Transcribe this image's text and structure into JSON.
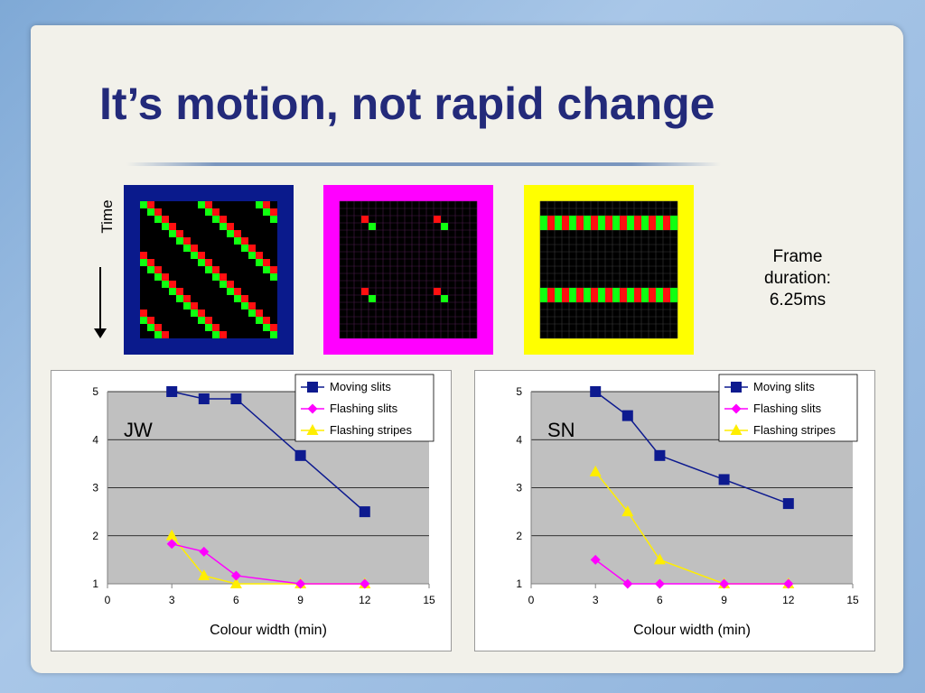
{
  "slide": {
    "title": "It’s motion, not rapid change",
    "time_label": "Time",
    "frame_note": [
      "Frame",
      "duration:",
      "6.25ms"
    ]
  },
  "stimuli": [
    {
      "name": "moving-slits",
      "border_color": "#0a1a8c"
    },
    {
      "name": "flashing-slits",
      "border_color": "#ff00ff"
    },
    {
      "name": "flashing-stripes",
      "border_color": "#ffff00"
    }
  ],
  "colors": {
    "moving": "#0d1a8f",
    "slits": "#ff00ff",
    "stripes": "#ffee00",
    "plot_bg": "#c0c0c0"
  },
  "chart_data": [
    {
      "type": "line",
      "subject": "JW",
      "xlabel": "Colour width (min)",
      "ylabel": "",
      "xlim": [
        0,
        15
      ],
      "ylim": [
        1,
        5
      ],
      "xticks": [
        0,
        3,
        6,
        9,
        12,
        15
      ],
      "yticks": [
        1,
        2,
        3,
        4,
        5
      ],
      "grid": true,
      "legend_position": "top-right",
      "series": [
        {
          "name": "Moving slits",
          "x": [
            3,
            4.5,
            6,
            9,
            12
          ],
          "y": [
            5,
            4.85,
            4.85,
            3.67,
            2.5
          ]
        },
        {
          "name": "Flashing slits",
          "x": [
            3,
            4.5,
            6,
            9,
            12
          ],
          "y": [
            1.83,
            1.67,
            1.17,
            1,
            1
          ]
        },
        {
          "name": "Flashing stripes",
          "x": [
            3,
            4.5,
            6,
            9,
            12
          ],
          "y": [
            2,
            1.17,
            1,
            1,
            1
          ]
        }
      ]
    },
    {
      "type": "line",
      "subject": "SN",
      "xlabel": "Colour width (min)",
      "ylabel": "",
      "xlim": [
        0,
        15
      ],
      "ylim": [
        1,
        5
      ],
      "xticks": [
        0,
        3,
        6,
        9,
        12,
        15
      ],
      "yticks": [
        1,
        2,
        3,
        4,
        5
      ],
      "grid": true,
      "legend_position": "top-right",
      "series": [
        {
          "name": "Moving slits",
          "x": [
            3,
            4.5,
            6,
            9,
            12
          ],
          "y": [
            5,
            4.5,
            3.67,
            3.17,
            2.67
          ]
        },
        {
          "name": "Flashing slits",
          "x": [
            3,
            4.5,
            6,
            9,
            12
          ],
          "y": [
            1.5,
            1,
            1,
            1,
            1
          ]
        },
        {
          "name": "Flashing stripes",
          "x": [
            3,
            4.5,
            6,
            9,
            12
          ],
          "y": [
            3.33,
            2.5,
            1.5,
            1,
            1
          ]
        }
      ]
    }
  ]
}
